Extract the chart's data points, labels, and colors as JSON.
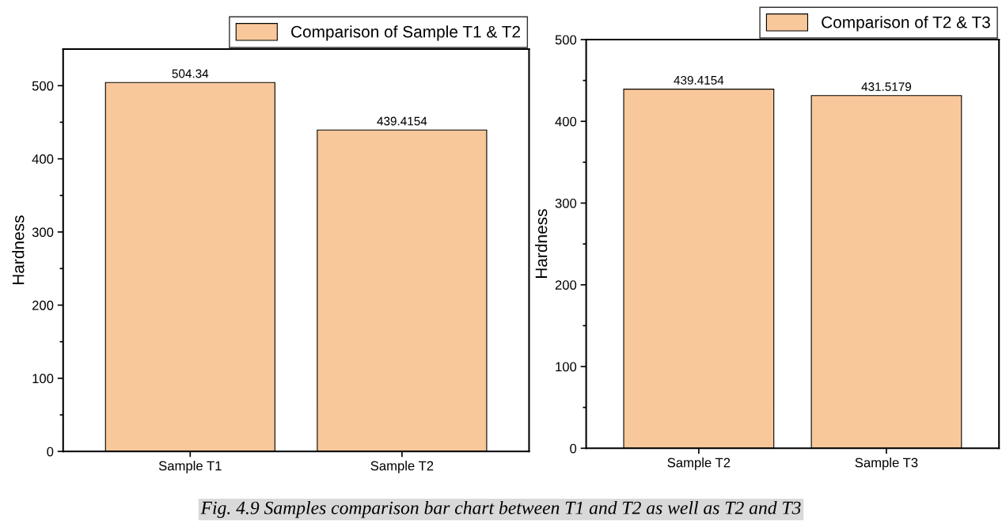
{
  "chart_data": [
    {
      "type": "bar",
      "categories": [
        "Sample T1",
        "Sample T2"
      ],
      "ylabel": "Hardness",
      "ylim": [
        0,
        550
      ],
      "yticks": [
        0,
        100,
        200,
        300,
        400,
        500
      ],
      "series": [
        {
          "name": "Comparison of Sample T1 & T2",
          "color": "#f9c89a",
          "values": [
            504.34,
            439.4154
          ]
        }
      ],
      "data_labels": true,
      "legend": "top right",
      "annotations": [
        "Fig. 4.9 Samples comparison bar chart between T1 and T2 as well as T2 and T3"
      ]
    },
    {
      "type": "bar",
      "categories": [
        "Sample T2",
        "Sample T3"
      ],
      "ylabel": "Hardness",
      "ylim": [
        0,
        500
      ],
      "yticks": [
        0,
        100,
        200,
        300,
        400,
        500
      ],
      "series": [
        {
          "name": "Comparison of T2 & T3",
          "color": "#f9c89a",
          "values": [
            439.4154,
            431.5179
          ]
        }
      ],
      "data_labels": true,
      "legend": "top right"
    }
  ]
}
